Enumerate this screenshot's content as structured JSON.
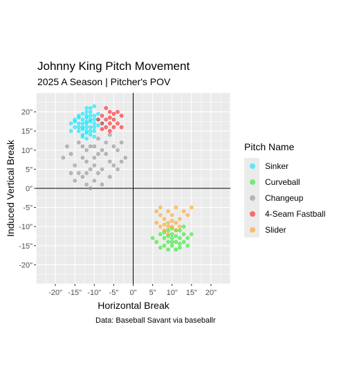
{
  "chart_data": {
    "type": "scatter",
    "title": "Johnny King Pitch Movement",
    "subtitle": "2025 A Season | Pitcher's POV",
    "xlabel": "Horizontal Break",
    "ylabel": "Induced Vertical Break",
    "caption": "Data: Baseball Savant via baseballr",
    "xlim": [
      -25,
      25
    ],
    "ylim": [
      -25,
      25
    ],
    "x_ticks": [
      "-20\"",
      "-15\"",
      "-10\"",
      "-5\"",
      "0\"",
      "5\"",
      "10\"",
      "15\"",
      "20\""
    ],
    "x_tick_values": [
      -20,
      -15,
      -10,
      -5,
      0,
      5,
      10,
      15,
      20
    ],
    "y_ticks": [
      "20\"",
      "15\"",
      "10\"",
      "5\"",
      "0\"",
      "-5\"",
      "-10\"",
      "-15\"",
      "-20\""
    ],
    "y_tick_values": [
      20,
      15,
      10,
      5,
      0,
      -5,
      -10,
      -15,
      -20
    ],
    "grid": true,
    "reference_lines": {
      "x": 0,
      "y": 0
    },
    "legend": {
      "title": "Pitch Name",
      "position": "right"
    },
    "series": [
      {
        "name": "Sinker",
        "color": "#00e5ff",
        "points": [
          [
            -12,
            17
          ],
          [
            -11,
            18
          ],
          [
            -13,
            16
          ],
          [
            -10,
            17
          ],
          [
            -12,
            19
          ],
          [
            -14,
            15
          ],
          [
            -11,
            16
          ],
          [
            -13,
            18
          ],
          [
            -10,
            19
          ],
          [
            -12,
            15
          ],
          [
            -9,
            18
          ],
          [
            -14,
            17
          ],
          [
            -11,
            20
          ],
          [
            -13,
            14
          ],
          [
            -10,
            16
          ],
          [
            -12,
            17.5
          ],
          [
            -15,
            16
          ],
          [
            -11,
            15
          ],
          [
            -9,
            16.5
          ],
          [
            -13,
            19.5
          ],
          [
            -12,
            21
          ],
          [
            -10,
            21.5
          ],
          [
            -14,
            18.5
          ],
          [
            -16,
            17
          ],
          [
            -11,
            14
          ],
          [
            -12,
            13
          ],
          [
            -13,
            15.5
          ],
          [
            -10,
            15
          ],
          [
            -15,
            18
          ],
          [
            -8,
            17
          ],
          [
            -12,
            16
          ],
          [
            -11,
            17.5
          ],
          [
            -13,
            17
          ],
          [
            -10,
            18
          ],
          [
            -14,
            16
          ],
          [
            -12,
            18.5
          ],
          [
            -11,
            19
          ],
          [
            -9,
            19.5
          ],
          [
            -13,
            13.5
          ],
          [
            -16,
            15
          ],
          [
            -12,
            14.5
          ],
          [
            -10,
            13.5
          ],
          [
            -14,
            19
          ],
          [
            -15,
            17.5
          ],
          [
            -11,
            21
          ],
          [
            -12,
            20
          ]
        ]
      },
      {
        "name": "Curveball",
        "color": "#22ee22",
        "points": [
          [
            10,
            -12
          ],
          [
            12,
            -13
          ],
          [
            9,
            -14
          ],
          [
            11,
            -11
          ],
          [
            13,
            -12
          ],
          [
            8,
            -13
          ],
          [
            10,
            -15
          ],
          [
            12,
            -11
          ],
          [
            7,
            -12
          ],
          [
            11,
            -14
          ],
          [
            14,
            -13
          ],
          [
            9,
            -11
          ],
          [
            10,
            -13
          ],
          [
            8,
            -15
          ],
          [
            12,
            -14.5
          ],
          [
            13,
            -10
          ],
          [
            6,
            -14
          ],
          [
            11,
            -16
          ],
          [
            9,
            -16
          ],
          [
            14,
            -15
          ],
          [
            10,
            -10.5
          ],
          [
            7,
            -15.5
          ],
          [
            12,
            -15.5
          ],
          [
            5,
            -13
          ],
          [
            15,
            -12
          ],
          [
            10,
            -14
          ],
          [
            11,
            -12.5
          ],
          [
            8,
            -11.5
          ],
          [
            13,
            -14
          ],
          [
            9,
            -12.5
          ]
        ]
      },
      {
        "name": "Changeup",
        "color": "#909090",
        "points": [
          [
            -14,
            12
          ],
          [
            -12,
            10
          ],
          [
            -10,
            8
          ],
          [
            -15,
            6
          ],
          [
            -11,
            5
          ],
          [
            -13,
            3
          ],
          [
            -9,
            4
          ],
          [
            -7,
            9
          ],
          [
            -5,
            11
          ],
          [
            -3,
            7
          ],
          [
            -16,
            9
          ],
          [
            -12,
            7
          ],
          [
            -10,
            2
          ],
          [
            -8,
            5
          ],
          [
            -6,
            3
          ],
          [
            -14,
            4
          ],
          [
            -11,
            11
          ],
          [
            -9,
            13
          ],
          [
            -4,
            5
          ],
          [
            -2,
            8
          ],
          [
            -17,
            11
          ],
          [
            -13,
            8
          ],
          [
            -8,
            1
          ],
          [
            -11,
            0
          ],
          [
            -6,
            7
          ],
          [
            -15,
            2
          ],
          [
            -12,
            4
          ],
          [
            -7,
            12
          ],
          [
            -4,
            10
          ],
          [
            -18,
            8
          ],
          [
            -10,
            6
          ],
          [
            -9,
            9
          ],
          [
            -5,
            6
          ],
          [
            -13,
            11
          ],
          [
            -16,
            4
          ],
          [
            -8,
            10
          ],
          [
            -12,
            1
          ],
          [
            -3,
            12
          ],
          [
            -6,
            14
          ],
          [
            -10,
            11
          ]
        ]
      },
      {
        "name": "4-Seam Fastball",
        "color": "#ff1a1a",
        "points": [
          [
            -7,
            18
          ],
          [
            -6,
            17
          ],
          [
            -8,
            19
          ],
          [
            -5,
            18
          ],
          [
            -7,
            16
          ],
          [
            -6,
            20
          ],
          [
            -4,
            17
          ],
          [
            -8,
            17
          ],
          [
            -5,
            16
          ],
          [
            -7,
            21
          ],
          [
            -3,
            19
          ],
          [
            -6,
            18.5
          ],
          [
            -9,
            18
          ],
          [
            -4,
            20
          ],
          [
            -5,
            19.5
          ],
          [
            -8,
            15.5
          ],
          [
            -6,
            15
          ],
          [
            -3,
            16
          ]
        ]
      },
      {
        "name": "Slider",
        "color": "#ffa31a",
        "points": [
          [
            9,
            -9
          ],
          [
            8,
            -8
          ],
          [
            10,
            -10
          ],
          [
            7,
            -7
          ],
          [
            11,
            -9
          ],
          [
            9,
            -6
          ],
          [
            12,
            -8
          ],
          [
            8,
            -11
          ],
          [
            10,
            -7
          ],
          [
            6,
            -9
          ],
          [
            13,
            -6
          ],
          [
            9,
            -10
          ],
          [
            7,
            -5
          ],
          [
            11,
            -5
          ],
          [
            14,
            -7
          ],
          [
            8,
            -9.5
          ],
          [
            10,
            -8.5
          ],
          [
            12,
            -10
          ],
          [
            6,
            -6
          ],
          [
            15,
            -5
          ],
          [
            9,
            -12
          ],
          [
            11,
            -11
          ],
          [
            7,
            -10
          ]
        ]
      }
    ]
  }
}
